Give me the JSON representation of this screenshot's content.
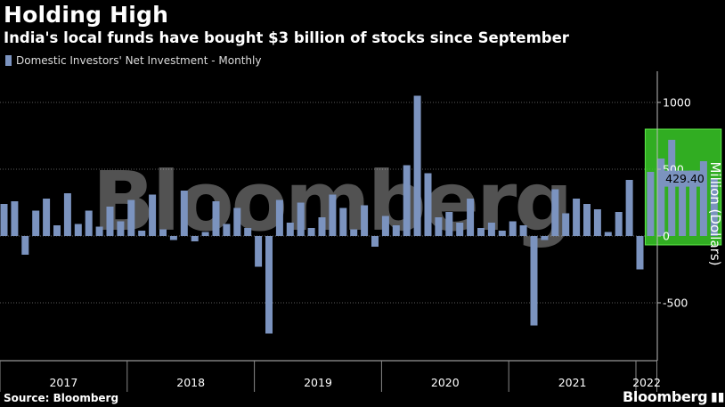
{
  "title": "Holding High",
  "subtitle": "India's local funds have bought $3 billion of stocks since September",
  "source": "Source: Bloomberg",
  "brand": "Bloomberg",
  "watermark": "Bloomberg",
  "icons": {
    "brand": "chart-icon"
  },
  "colors": {
    "bar": "#7b93bf",
    "highlight": "#3acb28",
    "grid": "#5a5a5a",
    "label_bg": "#7b93bf"
  },
  "chart_data": {
    "type": "bar",
    "title": "Holding High",
    "legend": "Domestic Investors' Net Investment - Monthly",
    "ylabel": "Million (Dollars)",
    "ylim": [
      -900,
      1200
    ],
    "yticks": [
      -500,
      0,
      500,
      1000
    ],
    "ytick_labels": [
      "-500",
      "0",
      "500",
      "1000"
    ],
    "last_value_label": "429.40",
    "last_value": 429.4,
    "years": [
      "2017",
      "2018",
      "2019",
      "2020",
      "2021",
      "2022"
    ],
    "months_start": "2017-01",
    "values": [
      240,
      260,
      -140,
      190,
      280,
      80,
      320,
      90,
      190,
      70,
      220,
      110,
      270,
      40,
      310,
      50,
      -30,
      340,
      -40,
      30,
      260,
      90,
      210,
      60,
      -230,
      -730,
      270,
      100,
      250,
      60,
      140,
      310,
      210,
      50,
      230,
      -80,
      150,
      80,
      530,
      1050,
      470,
      140,
      180,
      100,
      280,
      60,
      100,
      40,
      110,
      80,
      -670,
      -30,
      350,
      170,
      280,
      240,
      200,
      30,
      180,
      420,
      -250,
      480,
      580,
      720,
      390,
      490,
      560,
      429.4
    ],
    "highlight": {
      "start_index": 61,
      "end_index": 67
    }
  }
}
